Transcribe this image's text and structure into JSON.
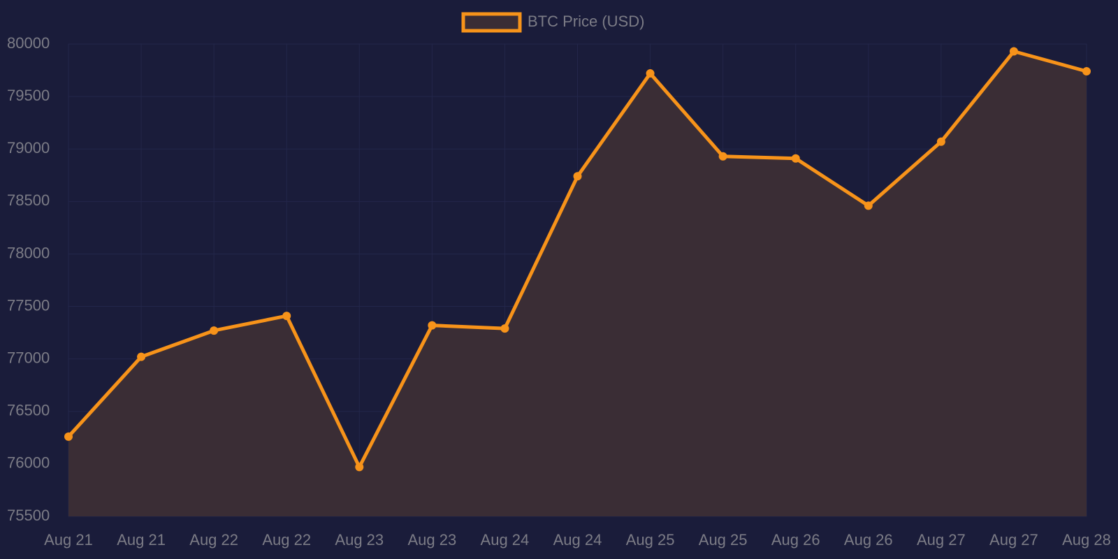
{
  "chart_data": {
    "type": "line",
    "categories": [
      "Aug 21",
      "Aug 21",
      "Aug 22",
      "Aug 22",
      "Aug 23",
      "Aug 23",
      "Aug 24",
      "Aug 24",
      "Aug 25",
      "Aug 25",
      "Aug 26",
      "Aug 26",
      "Aug 27",
      "Aug 27",
      "Aug 28"
    ],
    "series": [
      {
        "name": "BTC Price (USD)",
        "color": "#f7931a",
        "fill": "#3a2d35",
        "values": [
          76260,
          77020,
          77270,
          77410,
          75970,
          77320,
          77290,
          78740,
          79720,
          78930,
          78910,
          78460,
          79070,
          79930,
          79740
        ]
      }
    ],
    "ylim": [
      75500,
      80000
    ],
    "yticks": [
      75500,
      76000,
      76500,
      77000,
      77500,
      78000,
      78500,
      79000,
      79500,
      80000
    ],
    "grid": true,
    "legend": "top"
  }
}
